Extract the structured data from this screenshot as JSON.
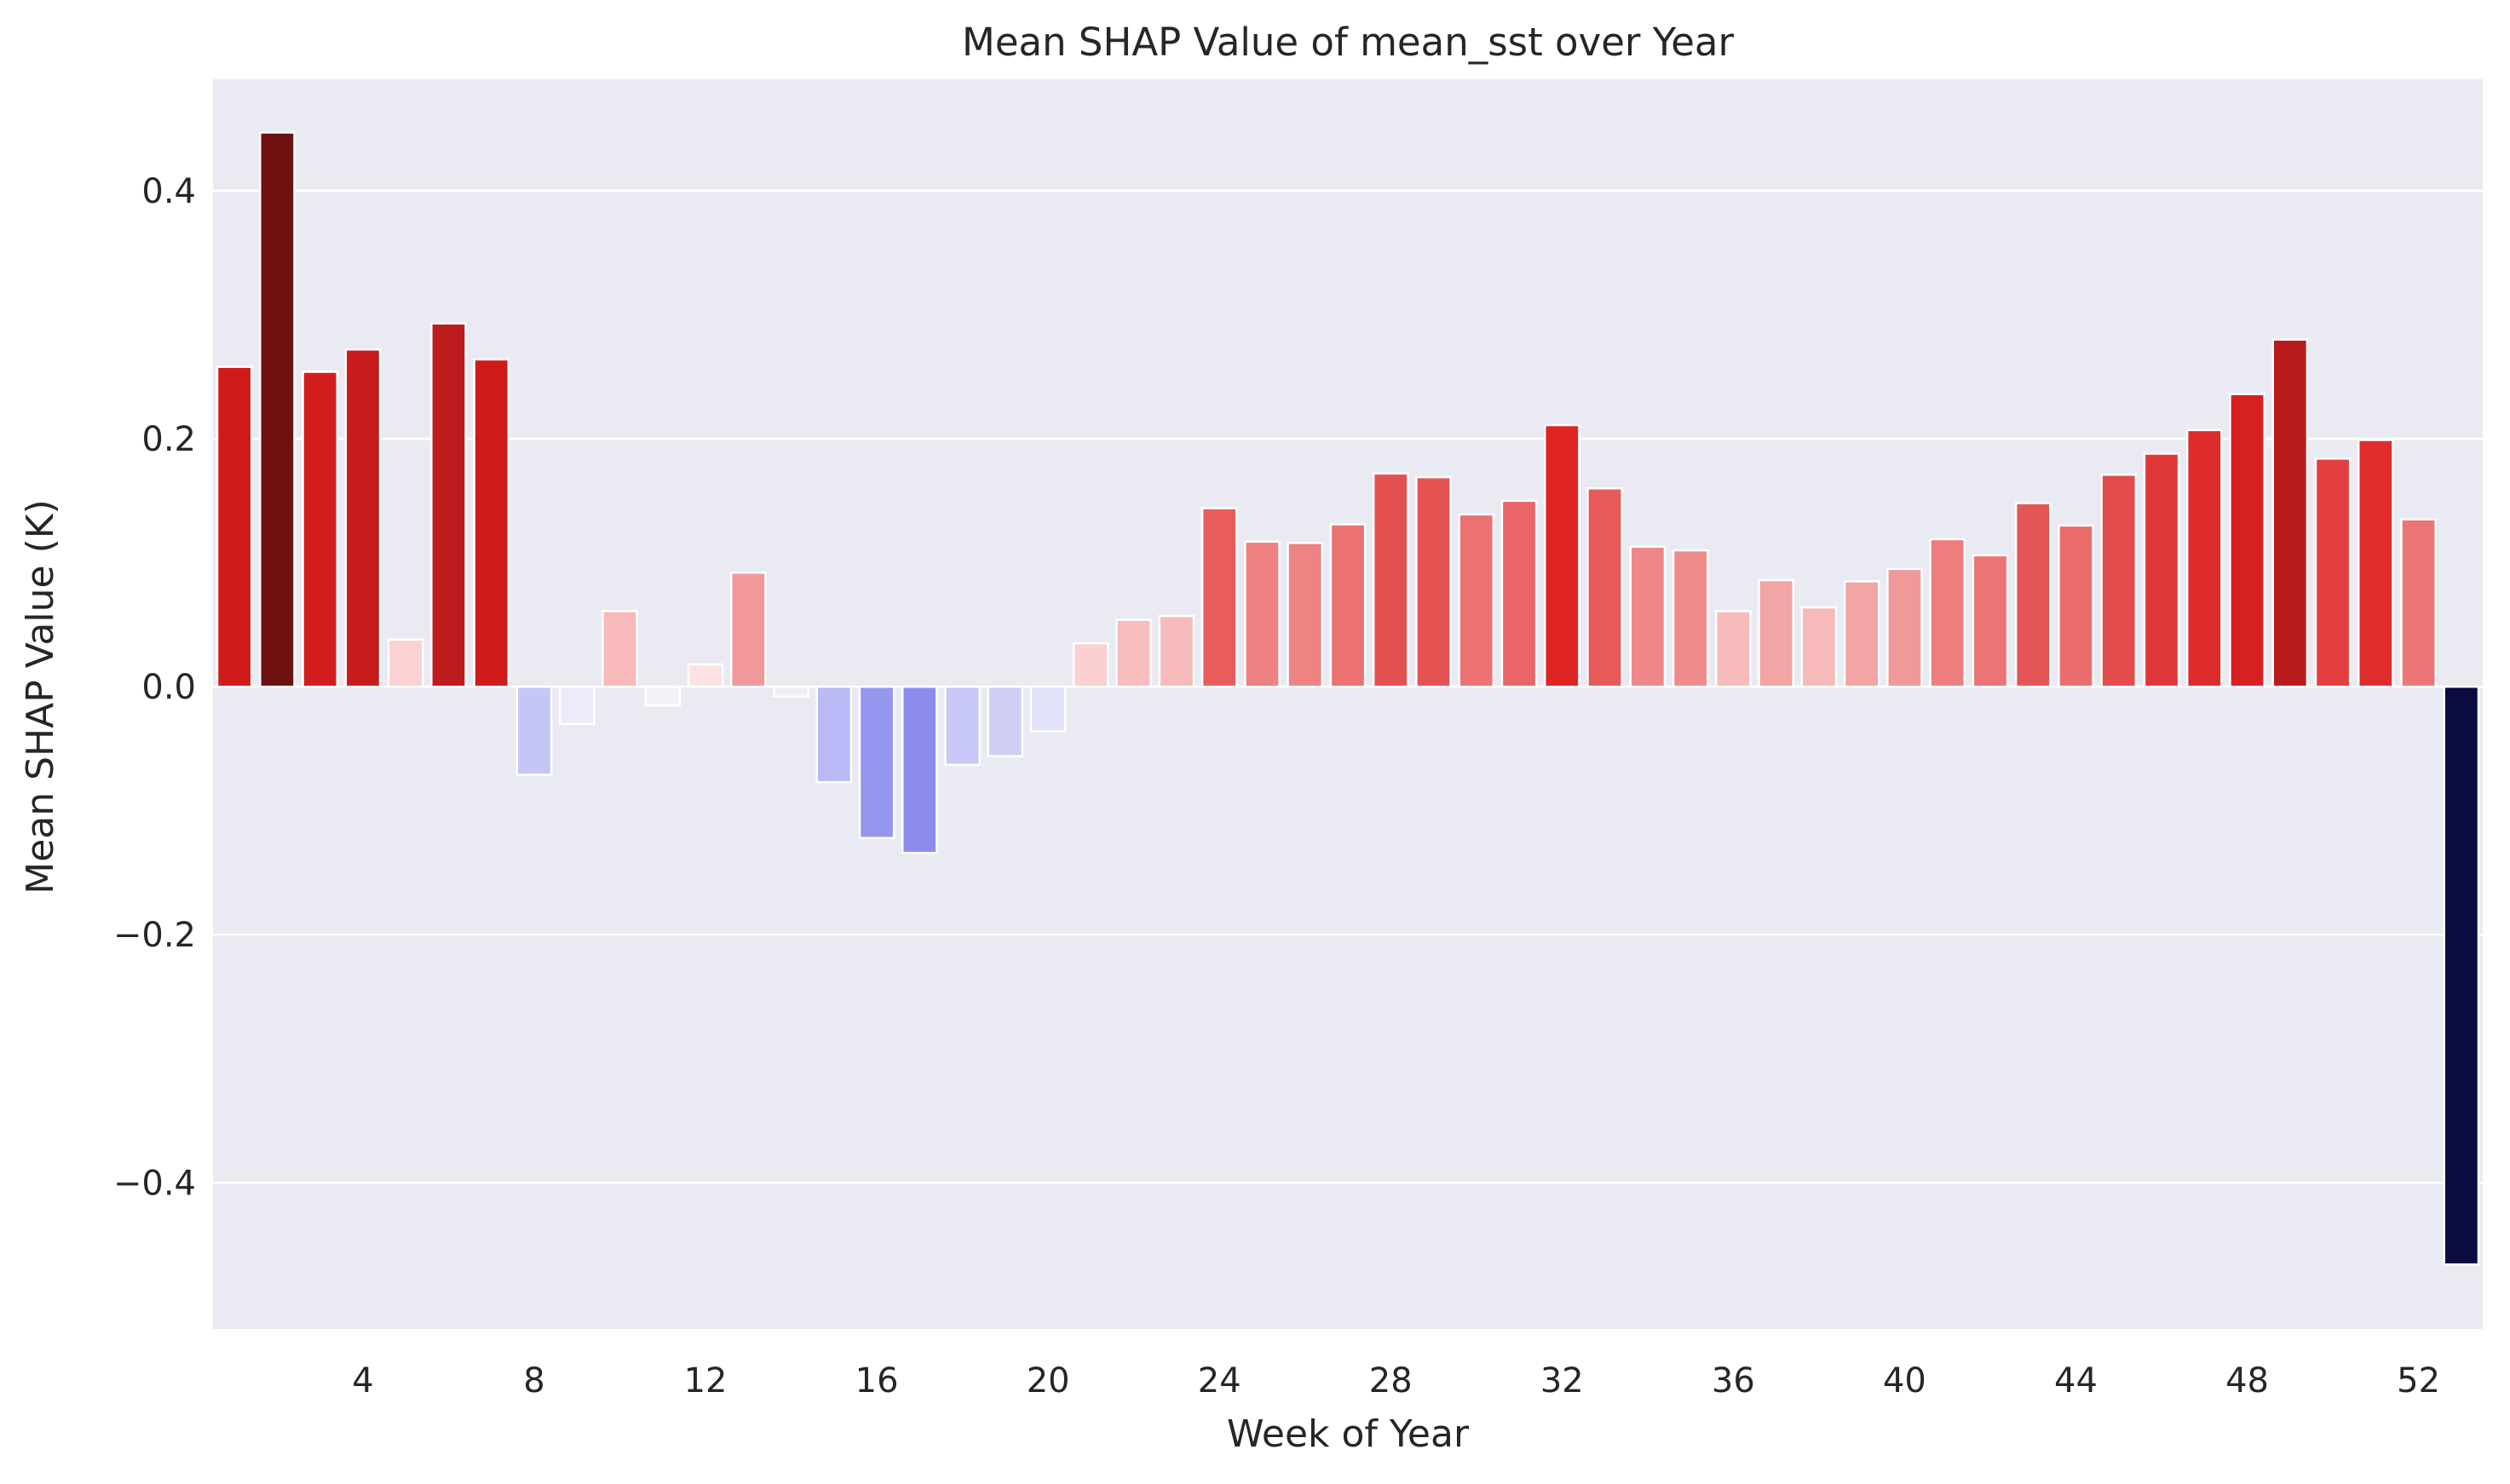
{
  "chart_data": {
    "type": "bar",
    "title": "Mean SHAP Value of mean_sst over Year",
    "xlabel": "Week of Year",
    "ylabel": "Mean SHAP Value (K)",
    "categories": [
      1,
      2,
      3,
      4,
      5,
      6,
      7,
      8,
      9,
      10,
      11,
      12,
      13,
      14,
      15,
      16,
      17,
      18,
      19,
      20,
      21,
      22,
      23,
      24,
      25,
      26,
      27,
      28,
      29,
      30,
      31,
      32,
      33,
      34,
      35,
      36,
      37,
      38,
      39,
      40,
      41,
      42,
      43,
      44,
      45,
      46,
      47,
      48,
      49,
      50,
      51,
      52,
      53
    ],
    "values": [
      0.258,
      0.447,
      0.254,
      0.272,
      0.038,
      0.293,
      0.264,
      -0.071,
      -0.03,
      0.061,
      -0.015,
      0.018,
      0.092,
      -0.008,
      -0.077,
      -0.122,
      -0.134,
      -0.063,
      -0.056,
      -0.036,
      0.035,
      0.054,
      0.057,
      0.144,
      0.117,
      0.116,
      0.131,
      0.172,
      0.169,
      0.139,
      0.15,
      0.211,
      0.16,
      0.113,
      0.11,
      0.061,
      0.086,
      0.064,
      0.085,
      0.095,
      0.119,
      0.106,
      0.148,
      0.13,
      0.171,
      0.188,
      0.207,
      0.236,
      0.28,
      0.184,
      0.199,
      0.135,
      -0.466
    ],
    "colors": [
      "#d01a1a",
      "#6e1010",
      "#d31d1d",
      "#c81c1c",
      "#fbd1d1",
      "#bc1c1c",
      "#d01a1a",
      "#c6c6f6",
      "#ebebfa",
      "#f7b9b9",
      "#f3f3f7",
      "#fde2e2",
      "#f1999a",
      "#efeff8",
      "#babaf6",
      "#9696ef",
      "#8c8ced",
      "#c8c8f6",
      "#cfcff6",
      "#e2e2fa",
      "#fcd0d0",
      "#f7bdbd",
      "#f7bbbb",
      "#ea5c5c",
      "#ed8181",
      "#ed8383",
      "#ec7272",
      "#e45050",
      "#e55252",
      "#ec7272",
      "#ea6666",
      "#e02323",
      "#e85a5a",
      "#ee8888",
      "#ee8a8a",
      "#f7bbbb",
      "#f2a5a5",
      "#f7baba",
      "#f2a5a5",
      "#f09999",
      "#ee7d7d",
      "#ec7474",
      "#e55656",
      "#eb6c6c",
      "#e34c4c",
      "#e03838",
      "#dd2b2b",
      "#d72020",
      "#b81b1b",
      "#e43e3e",
      "#e02c2c",
      "#ec7676",
      "#0a0b3f"
    ],
    "xticks": [
      4,
      8,
      12,
      16,
      20,
      24,
      28,
      32,
      36,
      40,
      44,
      48,
      52
    ],
    "xtick_labels": [
      "4",
      "8",
      "12",
      "16",
      "20",
      "24",
      "28",
      "32",
      "36",
      "40",
      "44",
      "48",
      "52"
    ],
    "yticks": [
      -0.4,
      -0.2,
      0.0,
      0.2,
      0.4
    ],
    "ytick_labels": [
      "−0.4",
      "−0.2",
      "0.0",
      "0.2",
      "0.4"
    ],
    "ylim": [
      -0.518,
      0.49
    ],
    "grid": true,
    "legend": "none"
  }
}
